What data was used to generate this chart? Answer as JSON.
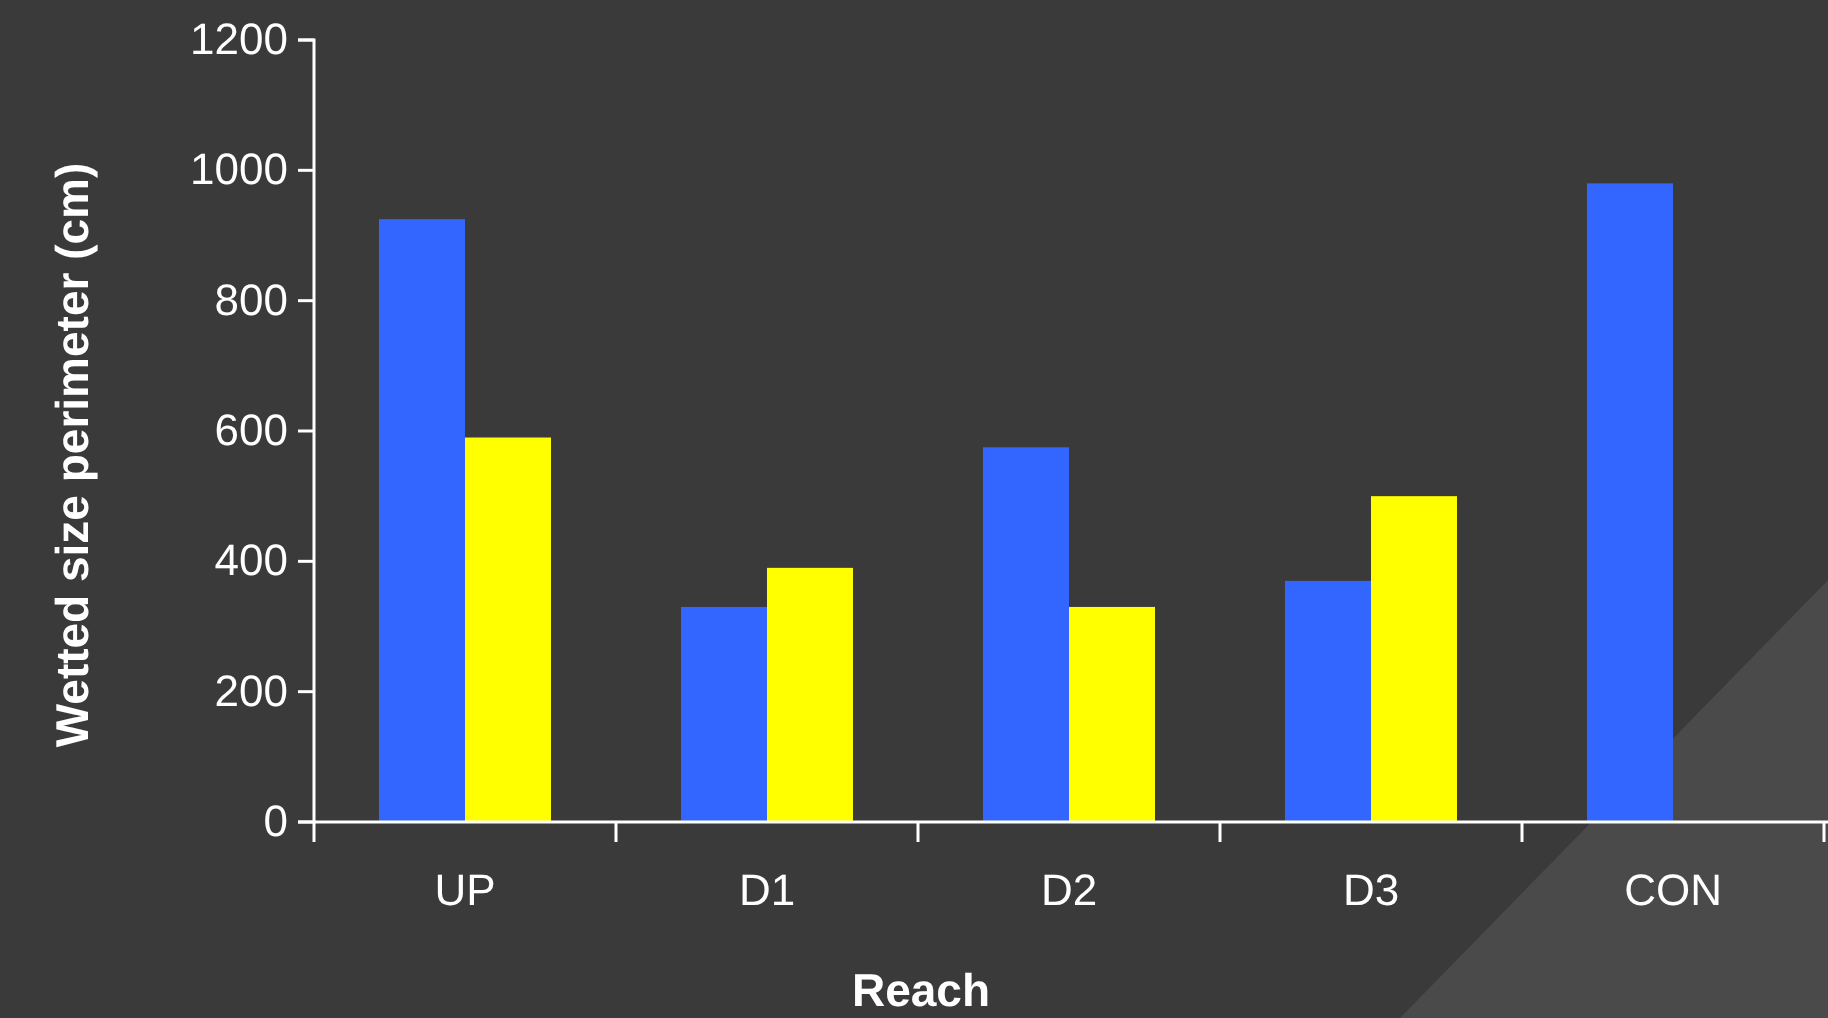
{
  "chart_data": {
    "type": "bar",
    "xlabel": "Reach",
    "ylabel": "Wetted size perimeter (cm)",
    "categories": [
      "UP",
      "D1",
      "D2",
      "D3",
      "CON"
    ],
    "series": [
      {
        "color": "#3366ff",
        "values": [
          925,
          330,
          575,
          370,
          980
        ]
      },
      {
        "color": "#ffff00",
        "values": [
          590,
          390,
          330,
          500,
          null
        ]
      }
    ],
    "ylim": [
      0,
      1200
    ],
    "yticks": [
      0,
      200,
      400,
      600,
      800,
      1000,
      1200
    ],
    "grid": false
  }
}
